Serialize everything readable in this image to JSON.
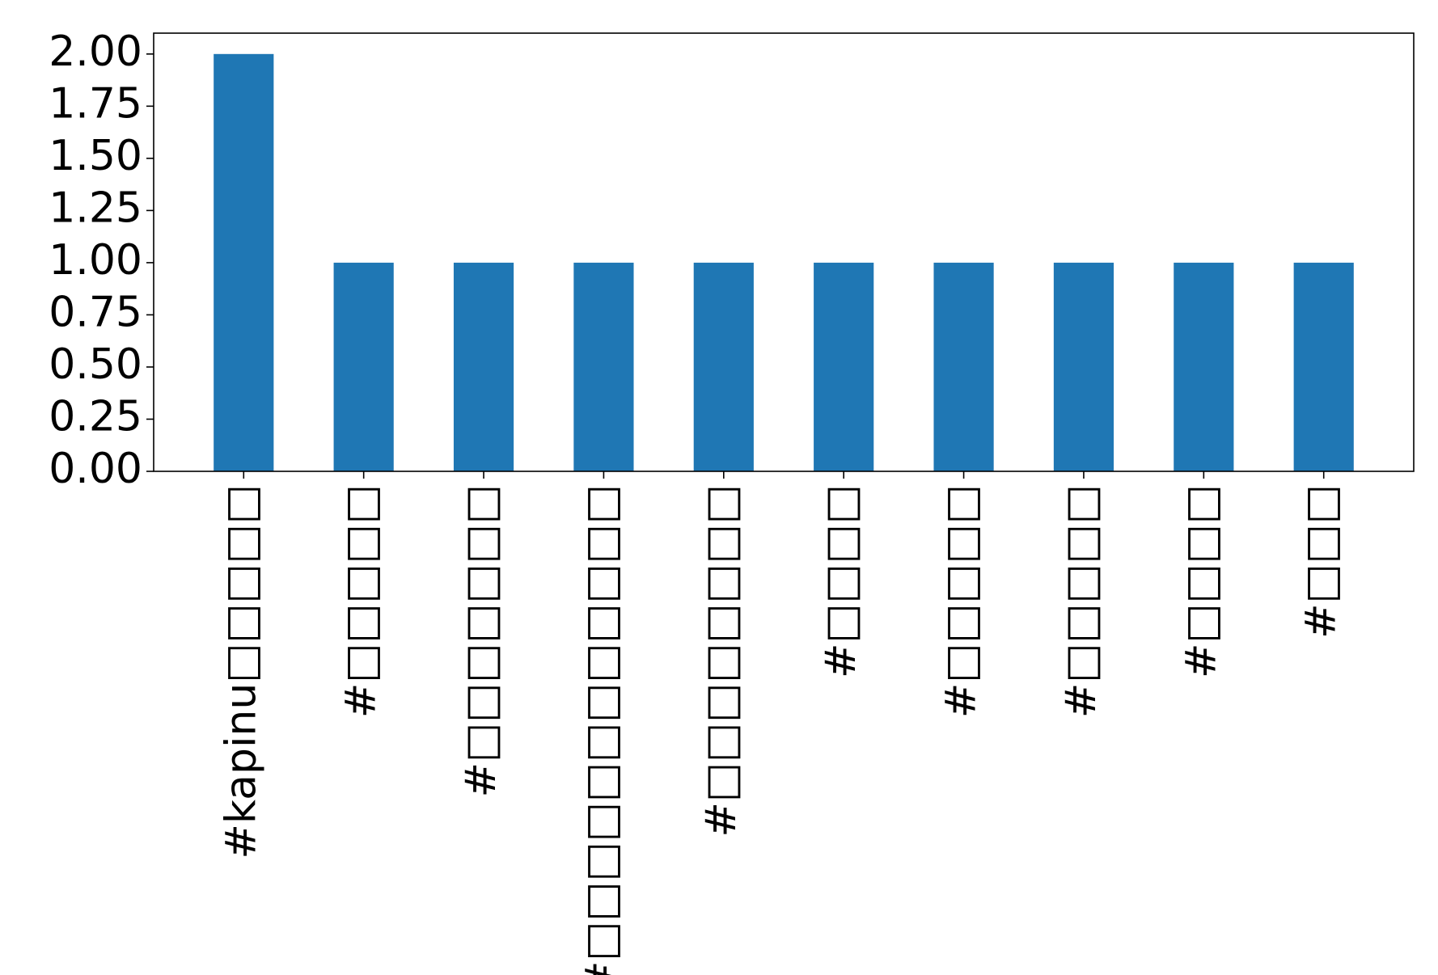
{
  "chart_data": {
    "type": "bar",
    "title": "",
    "xlabel": "",
    "ylabel": "",
    "categories": [
      "#kapinu□□□□□",
      "#□□□□□",
      "#□□□□□□□",
      "#□□□□□□□□□□□□",
      "#□□□□□□□□",
      "#□□□□",
      "#□□□□□",
      "#□□□□□",
      "#□□□□",
      "#□□□"
    ],
    "values": [
      2,
      1,
      1,
      1,
      1,
      1,
      1,
      1,
      1,
      1
    ],
    "ylim": [
      0,
      2.1
    ],
    "yticks": [
      "0.00",
      "0.25",
      "0.50",
      "0.75",
      "1.00",
      "1.25",
      "1.50",
      "1.75",
      "2.00"
    ],
    "bar_color": "#1f77b4",
    "grid": false,
    "legend": "none"
  }
}
